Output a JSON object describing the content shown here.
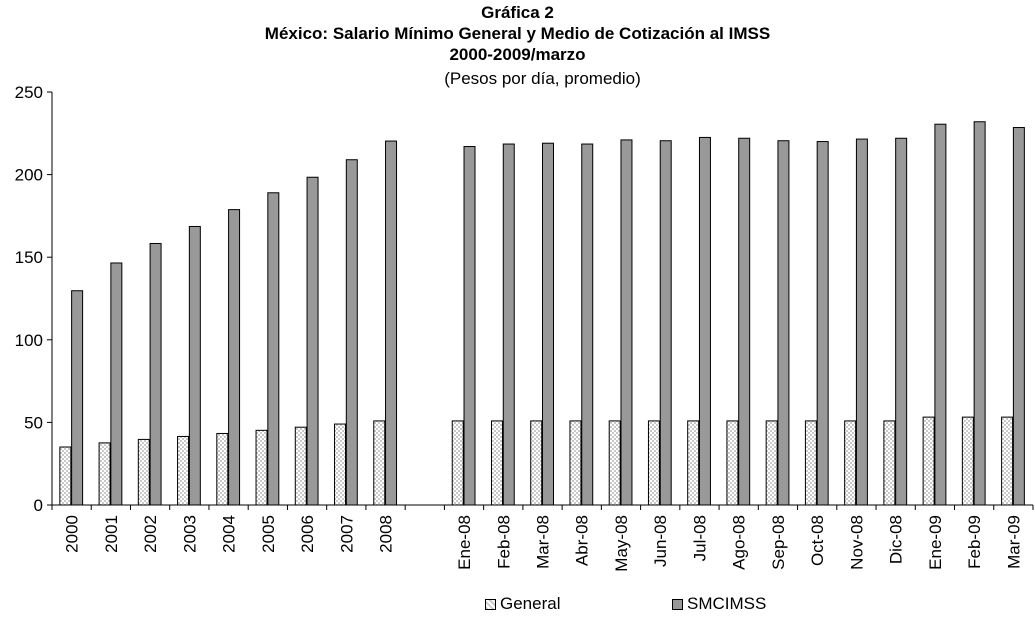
{
  "chart_data": {
    "type": "bar",
    "title_lines": [
      "Gráfica 2",
      "México: Salario Mínimo General y Medio de Cotización al IMSS",
      "2000-2009/marzo"
    ],
    "subtitle": "(Pesos por día, promedio)",
    "categories": [
      "2000",
      "2001",
      "2002",
      "2003",
      "2004",
      "2005",
      "2006",
      "2007",
      "2008",
      "",
      "Ene-08",
      "Feb-08",
      "Mar-08",
      "Abr-08",
      "May-08",
      "Jun-08",
      "Jul-08",
      "Ago-08",
      "Sep-08",
      "Oct-08",
      "Nov-08",
      "Dic-08",
      "Ene-09",
      "Feb-09",
      "Mar-09"
    ],
    "series": [
      {
        "name": "General",
        "values": [
          35.1,
          37.6,
          39.7,
          41.5,
          43.3,
          45.2,
          47.1,
          49.0,
          50.9,
          null,
          50.9,
          50.9,
          50.9,
          50.9,
          50.9,
          50.9,
          50.9,
          50.9,
          50.9,
          50.9,
          50.9,
          50.9,
          53.2,
          53.2,
          53.2
        ]
      },
      {
        "name": "SMCIMSS",
        "values": [
          129.7,
          146.5,
          158.3,
          168.6,
          178.8,
          189.0,
          198.4,
          209.0,
          220.3,
          null,
          217.0,
          218.5,
          219.0,
          218.5,
          221.0,
          220.5,
          222.5,
          222.0,
          220.5,
          220.0,
          221.5,
          222.0,
          230.5,
          232.0,
          228.5
        ]
      }
    ],
    "ylim": [
      0,
      250
    ],
    "yticks": [
      0,
      50,
      100,
      150,
      200,
      250
    ],
    "grid": false,
    "legend": "bottom",
    "colors": {
      "General": "#ffffff",
      "SMCIMSS": "#999999"
    }
  }
}
